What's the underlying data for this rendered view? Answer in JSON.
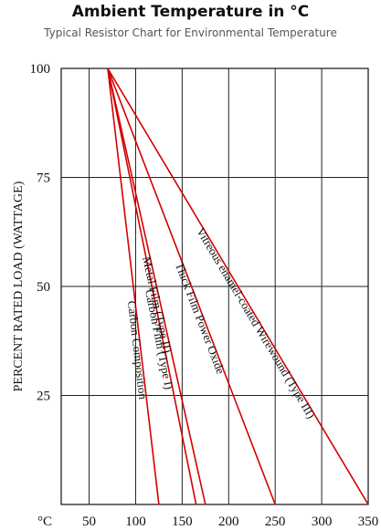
{
  "chart_data": {
    "type": "line",
    "title": "Ambient Temperature in °C",
    "subtitle": "Typical Resistor Chart for Environmental Temperature",
    "ylabel": "PERCENT RATED LOAD (WATTAGE)",
    "xlabel": "",
    "x_ticks": [
      "°C",
      "50",
      "100",
      "150",
      "200",
      "250",
      "300",
      "350"
    ],
    "x_tick_values": [
      20,
      50,
      100,
      150,
      200,
      250,
      300,
      350
    ],
    "y_ticks": [
      "25",
      "50",
      "75",
      "100"
    ],
    "y_tick_values": [
      25,
      50,
      75,
      100
    ],
    "xlim": [
      20,
      350
    ],
    "ylim": [
      0,
      100
    ],
    "grid": true,
    "line_color": "#d40000",
    "series": [
      {
        "name": "Carbon Composition",
        "x": [
          70,
          125
        ],
        "y": [
          100,
          0
        ]
      },
      {
        "name": "Carbon Film (Type I)",
        "x": [
          70,
          165
        ],
        "y": [
          100,
          0
        ]
      },
      {
        "name": "Metal Film (Type II)",
        "x": [
          70,
          175
        ],
        "y": [
          100,
          0
        ]
      },
      {
        "name": "Thick Film Power Oxide",
        "x": [
          70,
          250
        ],
        "y": [
          100,
          0
        ]
      },
      {
        "name": "Vitreous enamel-coated Wirewound (Type III)",
        "x": [
          70,
          350
        ],
        "y": [
          100,
          0
        ]
      }
    ]
  }
}
